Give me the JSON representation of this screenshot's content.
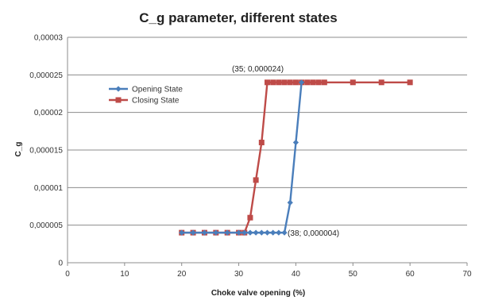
{
  "chart_data": {
    "type": "line",
    "title": "C_g parameter, different states",
    "xlabel": "Choke valve opening (%)",
    "ylabel": "C_g",
    "xlim": [
      0,
      70
    ],
    "ylim": [
      0,
      3e-05
    ],
    "x_ticks": [
      0,
      10,
      20,
      30,
      40,
      50,
      60,
      70
    ],
    "x_tick_labels": [
      "0",
      "10",
      "20",
      "30",
      "40",
      "50",
      "60",
      "70"
    ],
    "y_ticks": [
      0,
      5e-06,
      1e-05,
      1.5e-05,
      2e-05,
      2.5e-05,
      3e-05
    ],
    "y_tick_labels": [
      "0",
      "0,000005",
      "0,00001",
      "0,000015",
      "0,00002",
      "0,000025",
      "0,00003"
    ],
    "grid": "horizontal",
    "legend_position": "top-left",
    "series": [
      {
        "name": "Opening State",
        "color": "#4a7ebb",
        "marker": "diamond",
        "x": [
          20,
          22,
          24,
          26,
          28,
          30,
          31,
          32,
          33,
          34,
          35,
          36,
          37,
          38,
          39,
          40,
          41
        ],
        "y": [
          4e-06,
          4e-06,
          4e-06,
          4e-06,
          4e-06,
          4e-06,
          4e-06,
          4e-06,
          4e-06,
          4e-06,
          4e-06,
          4e-06,
          4e-06,
          4e-06,
          8e-06,
          1.6e-05,
          2.4e-05
        ]
      },
      {
        "name": "Closing State",
        "color": "#be4b48",
        "marker": "square",
        "x": [
          20,
          22,
          24,
          26,
          28,
          30,
          31,
          32,
          33,
          34,
          35,
          36,
          37,
          38,
          39,
          40,
          41,
          42,
          43,
          44,
          45,
          50,
          55,
          60
        ],
        "y": [
          4e-06,
          4e-06,
          4e-06,
          4e-06,
          4e-06,
          4e-06,
          4e-06,
          6e-06,
          1.1e-05,
          1.6e-05,
          2.4e-05,
          2.4e-05,
          2.4e-05,
          2.4e-05,
          2.4e-05,
          2.4e-05,
          2.4e-05,
          2.4e-05,
          2.4e-05,
          2.4e-05,
          2.4e-05,
          2.4e-05,
          2.4e-05,
          2.4e-05
        ]
      }
    ],
    "annotations": [
      {
        "text": "(35; 0,000024)",
        "x": 35,
        "y": 2.4e-05
      },
      {
        "text": "(38; 0,000004)",
        "x": 38,
        "y": 4e-06
      }
    ]
  }
}
